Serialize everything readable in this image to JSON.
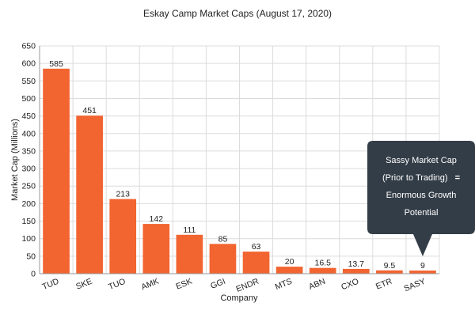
{
  "chart_data": {
    "type": "bar",
    "title": "Eskay Camp Market Caps (August 17, 2020)",
    "xlabel": "Company",
    "ylabel": "Market Cap (Millions)",
    "ylim": [
      0,
      650
    ],
    "yticks": [
      "0",
      "50",
      "100",
      "150",
      "200",
      "250",
      "300",
      "350",
      "400",
      "450",
      "500",
      "550",
      "600",
      "650"
    ],
    "grid": true,
    "categories": [
      "TUD",
      "SKE",
      "TUO",
      "AMK",
      "ESK",
      "GGI",
      "ENDR",
      "MTS",
      "ABN",
      "CXO",
      "ETR",
      "SASY"
    ],
    "values": [
      585,
      451,
      213,
      142,
      111,
      85,
      63,
      20,
      16.5,
      13.7,
      9.5,
      9
    ],
    "data_labels": [
      "585",
      "451",
      "213",
      "142",
      "111",
      "85",
      "63",
      "20",
      "16.5",
      "13.7",
      "9.5",
      "9"
    ],
    "bar_color": "#f26430",
    "annotation": {
      "lines": [
        "Sassy Market Cap",
        "(Prior to Trading)",
        "Enormous Growth",
        "Potential"
      ],
      "equals": "=",
      "target": "SASY",
      "color": "#333d47"
    }
  }
}
